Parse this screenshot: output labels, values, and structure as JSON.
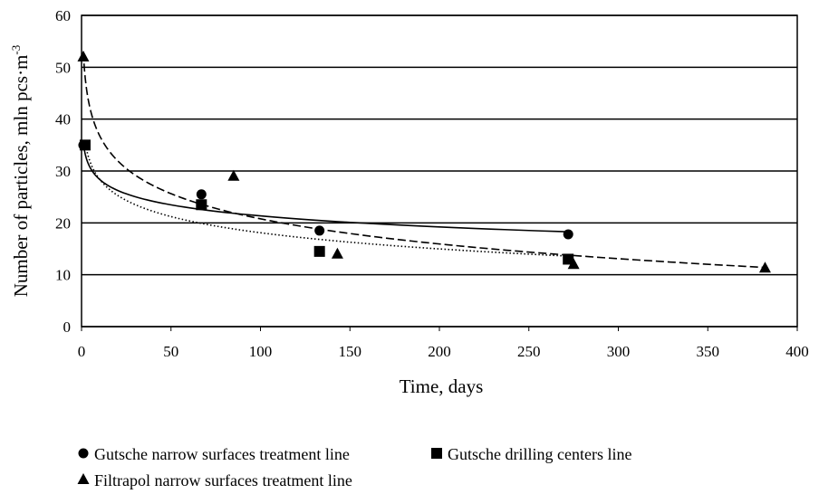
{
  "chart_data": {
    "type": "scatter",
    "x_label": "Time, days",
    "y_label": "Number of particles, mln pcs·m",
    "y_label_sup": "-3",
    "xlim": [
      0,
      400
    ],
    "xticks": [
      0,
      50,
      100,
      150,
      200,
      250,
      300,
      350,
      400
    ],
    "ylim": [
      0,
      60
    ],
    "yticks": [
      0,
      10,
      20,
      30,
      40,
      50,
      60
    ],
    "grid": true,
    "series": [
      {
        "name": "Gutsche narrow surfaces treatment line",
        "color": "#000000",
        "marker": "circle",
        "trendline": "solid",
        "x": [
          1,
          67,
          133,
          272
        ],
        "values": [
          35,
          25.5,
          18.5,
          17.8
        ]
      },
      {
        "name": "Gutsche drilling centers line",
        "color": "#000000",
        "marker": "square",
        "trendline": "dotted",
        "x": [
          2,
          67,
          133,
          272
        ],
        "values": [
          35,
          23.5,
          14.5,
          13
        ]
      },
      {
        "name": "Filtrapol narrow surfaces treatment line",
        "color": "#000000",
        "marker": "triangle",
        "trendline": "dashed",
        "x": [
          1,
          85,
          143,
          275,
          382
        ],
        "values": [
          52,
          29,
          14,
          12,
          11.3
        ]
      }
    ]
  }
}
